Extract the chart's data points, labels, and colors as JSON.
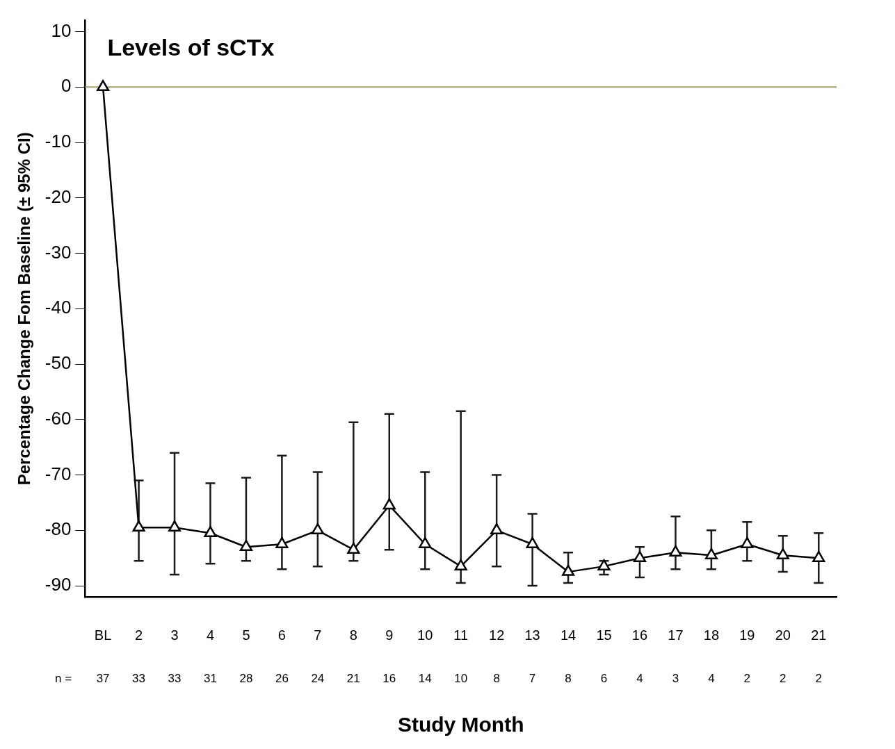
{
  "chart_data": {
    "type": "line",
    "title": "Levels of sCTx",
    "xlabel": "Study Month",
    "ylabel": "Percentage Change Fom Baseline (± 95% CI)",
    "categories": [
      "BL",
      "2",
      "3",
      "4",
      "5",
      "6",
      "7",
      "8",
      "9",
      "10",
      "11",
      "12",
      "13",
      "14",
      "15",
      "16",
      "17",
      "18",
      "19",
      "20",
      "21"
    ],
    "series": [
      {
        "color": "#000000",
        "values": [
          0,
          -79.5,
          -79.5,
          -80.5,
          -83,
          -82.5,
          -80,
          -83.5,
          -75.5,
          -82.5,
          -86.5,
          -80,
          -82.5,
          -87.5,
          -86.5,
          -85,
          -84,
          -84.5,
          -82.5,
          -84.5,
          -85
        ],
        "errors": [
          null,
          [
            -85.5,
            -71
          ],
          [
            -88,
            -66
          ],
          [
            -86,
            -71.5
          ],
          [
            -85.5,
            -70.5
          ],
          [
            -87,
            -66.5
          ],
          [
            -86.5,
            -69.5
          ],
          [
            -85.5,
            -60.5
          ],
          [
            -83.5,
            -59
          ],
          [
            -87,
            -69.5
          ],
          [
            -89.5,
            -58.5
          ],
          [
            -86.5,
            -70
          ],
          [
            -90,
            -77
          ],
          [
            -89.5,
            -84
          ],
          [
            -88,
            -85.5
          ],
          [
            -88.5,
            -83
          ],
          [
            -87,
            -77.5
          ],
          [
            -87,
            -80
          ],
          [
            -85.5,
            -78.5
          ],
          [
            -87.5,
            -81
          ],
          [
            -89.5,
            -80.5
          ]
        ]
      }
    ],
    "marker": "triangle",
    "line_style": "solid",
    "grid": false,
    "legend": false,
    "ylim": [
      -92,
      12
    ],
    "yticks": [
      -90,
      -80,
      -70,
      -60,
      -50,
      -40,
      -30,
      -20,
      -10,
      0,
      10
    ],
    "ref_lines": [
      {
        "axis": "y",
        "value": 0,
        "color": "#a3a26a"
      }
    ],
    "annotations": [
      "n =",
      "37",
      "33",
      "33",
      "31",
      "28",
      "26",
      "24",
      "21",
      "16",
      "14",
      "10",
      "8",
      "7",
      "8",
      "6",
      "4",
      "3",
      "4",
      "2",
      "2",
      "2"
    ]
  }
}
